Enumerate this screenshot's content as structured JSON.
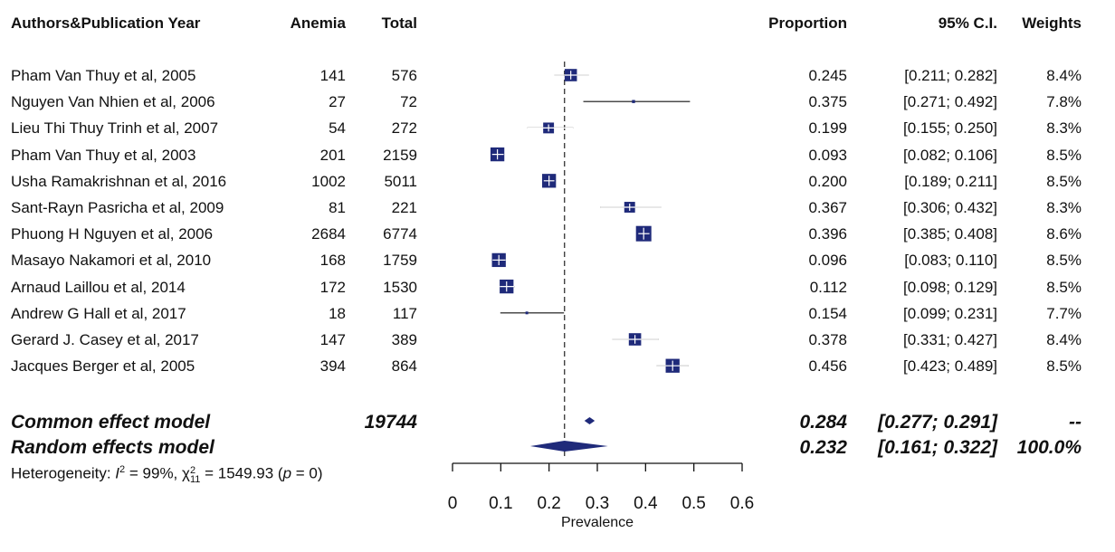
{
  "headers": {
    "study": "Authors&Publication Year",
    "anemia": "Anemia",
    "total": "Total",
    "proportion": "Proportion",
    "ci": "95% C.I.",
    "weights": "Weights"
  },
  "studies": [
    {
      "name": "Pham Van Thuy et al, 2005",
      "anemia": "141",
      "total": "576",
      "proportion": "0.245",
      "ci": "[0.211; 0.282]",
      "weight": "8.4%"
    },
    {
      "name": "Nguyen Van Nhien et al, 2006",
      "anemia": "27",
      "total": "72",
      "proportion": "0.375",
      "ci": "[0.271; 0.492]",
      "weight": "7.8%"
    },
    {
      "name": "Lieu Thi Thuy Trinh et al, 2007",
      "anemia": "54",
      "total": "272",
      "proportion": "0.199",
      "ci": "[0.155; 0.250]",
      "weight": "8.3%"
    },
    {
      "name": "Pham Van Thuy et al, 2003",
      "anemia": "201",
      "total": "2159",
      "proportion": "0.093",
      "ci": "[0.082; 0.106]",
      "weight": "8.5%"
    },
    {
      "name": "Usha Ramakrishnan et al, 2016",
      "anemia": "1002",
      "total": "5011",
      "proportion": "0.200",
      "ci": "[0.189; 0.211]",
      "weight": "8.5%"
    },
    {
      "name": "Sant-Rayn Pasricha et al, 2009",
      "anemia": "81",
      "total": "221",
      "proportion": "0.367",
      "ci": "[0.306; 0.432]",
      "weight": "8.3%"
    },
    {
      "name": "Phuong H Nguyen et al, 2006",
      "anemia": "2684",
      "total": "6774",
      "proportion": "0.396",
      "ci": "[0.385; 0.408]",
      "weight": "8.6%"
    },
    {
      "name": "Masayo Nakamori et al, 2010",
      "anemia": "168",
      "total": "1759",
      "proportion": "0.096",
      "ci": "[0.083; 0.110]",
      "weight": "8.5%"
    },
    {
      "name": "Arnaud Laillou et al, 2014",
      "anemia": "172",
      "total": "1530",
      "proportion": "0.112",
      "ci": "[0.098; 0.129]",
      "weight": "8.5%"
    },
    {
      "name": "Andrew G Hall et al, 2017",
      "anemia": "18",
      "total": "117",
      "proportion": "0.154",
      "ci": "[0.099; 0.231]",
      "weight": "7.7%"
    },
    {
      "name": "Gerard J. Casey et al, 2017",
      "anemia": "147",
      "total": "389",
      "proportion": "0.378",
      "ci": "[0.331; 0.427]",
      "weight": "8.4%"
    },
    {
      "name": "Jacques Berger et al, 2005",
      "anemia": "394",
      "total": "864",
      "proportion": "0.456",
      "ci": "[0.423; 0.489]",
      "weight": "8.5%"
    }
  ],
  "summary": {
    "common": {
      "label": "Common effect model",
      "total": "19744",
      "proportion": "0.284",
      "ci": "[0.277; 0.291]",
      "weight": "--"
    },
    "random": {
      "label": "Random effects model",
      "proportion": "0.232",
      "ci": "[0.161; 0.322]",
      "weight": "100.0%"
    }
  },
  "heterogeneity": {
    "prefix": "Heterogeneity: ",
    "i2_symbol": "I",
    "i2_sup": "2",
    "i2_value": " = 99%, ",
    "chi_symbol": "χ",
    "chi_sup": "2",
    "chi_sub": "11",
    "chi_value": " = 1549.93 (",
    "p_symbol": "p",
    "p_value": " = 0)"
  },
  "colors": {
    "marker": "#1f2a7a",
    "line": "#111111",
    "diamond": "#1f2a7a"
  },
  "chart_data": {
    "type": "forest",
    "xlabel": "Prevalence",
    "xlim": [
      0,
      0.6
    ],
    "ticks": [
      0,
      0.1,
      0.2,
      0.3,
      0.4,
      0.5,
      0.6
    ],
    "tick_labels": [
      "0",
      "0.1",
      "0.2",
      "0.3",
      "0.4",
      "0.5",
      "0.6"
    ],
    "reference_line": 0.232,
    "points": [
      {
        "est": 0.245,
        "lo": 0.211,
        "hi": 0.282,
        "weight": 8.4
      },
      {
        "est": 0.375,
        "lo": 0.271,
        "hi": 0.492,
        "weight": 7.8
      },
      {
        "est": 0.199,
        "lo": 0.155,
        "hi": 0.25,
        "weight": 8.3
      },
      {
        "est": 0.093,
        "lo": 0.082,
        "hi": 0.106,
        "weight": 8.5
      },
      {
        "est": 0.2,
        "lo": 0.189,
        "hi": 0.211,
        "weight": 8.5
      },
      {
        "est": 0.367,
        "lo": 0.306,
        "hi": 0.432,
        "weight": 8.3
      },
      {
        "est": 0.396,
        "lo": 0.385,
        "hi": 0.408,
        "weight": 8.6
      },
      {
        "est": 0.096,
        "lo": 0.083,
        "hi": 0.11,
        "weight": 8.5
      },
      {
        "est": 0.112,
        "lo": 0.098,
        "hi": 0.129,
        "weight": 8.5
      },
      {
        "est": 0.154,
        "lo": 0.099,
        "hi": 0.231,
        "weight": 7.7
      },
      {
        "est": 0.378,
        "lo": 0.331,
        "hi": 0.427,
        "weight": 8.4
      },
      {
        "est": 0.456,
        "lo": 0.423,
        "hi": 0.489,
        "weight": 8.5
      }
    ],
    "common": {
      "est": 0.284,
      "lo": 0.277,
      "hi": 0.291
    },
    "random": {
      "est": 0.232,
      "lo": 0.161,
      "hi": 0.322
    }
  }
}
